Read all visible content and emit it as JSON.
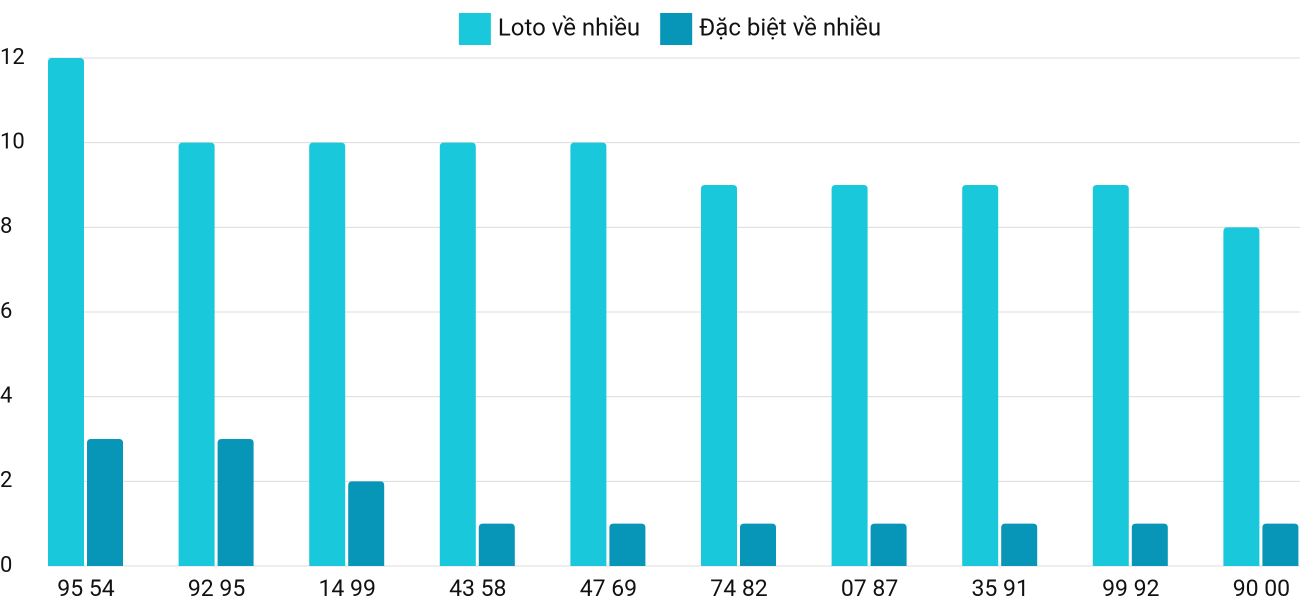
{
  "chart_data": {
    "type": "bar",
    "legend": "top",
    "grid": true,
    "categories": [
      "95 54",
      "92 95",
      "14 99",
      "43 58",
      "47 69",
      "74 82",
      "07 87",
      "35 91",
      "99 92",
      "90 00"
    ],
    "series": [
      {
        "name": "Loto về nhiều",
        "color": "#1ac8db",
        "values": [
          12,
          10,
          10,
          10,
          10,
          9,
          9,
          9,
          9,
          8
        ]
      },
      {
        "name": "Đặc biệt về nhiều",
        "color": "#0795b8",
        "values": [
          3,
          3,
          2,
          1,
          1,
          1,
          1,
          1,
          1,
          1
        ]
      }
    ],
    "ylim": [
      0,
      12
    ],
    "yticks": [
      0,
      2,
      4,
      6,
      8,
      10,
      12
    ]
  }
}
